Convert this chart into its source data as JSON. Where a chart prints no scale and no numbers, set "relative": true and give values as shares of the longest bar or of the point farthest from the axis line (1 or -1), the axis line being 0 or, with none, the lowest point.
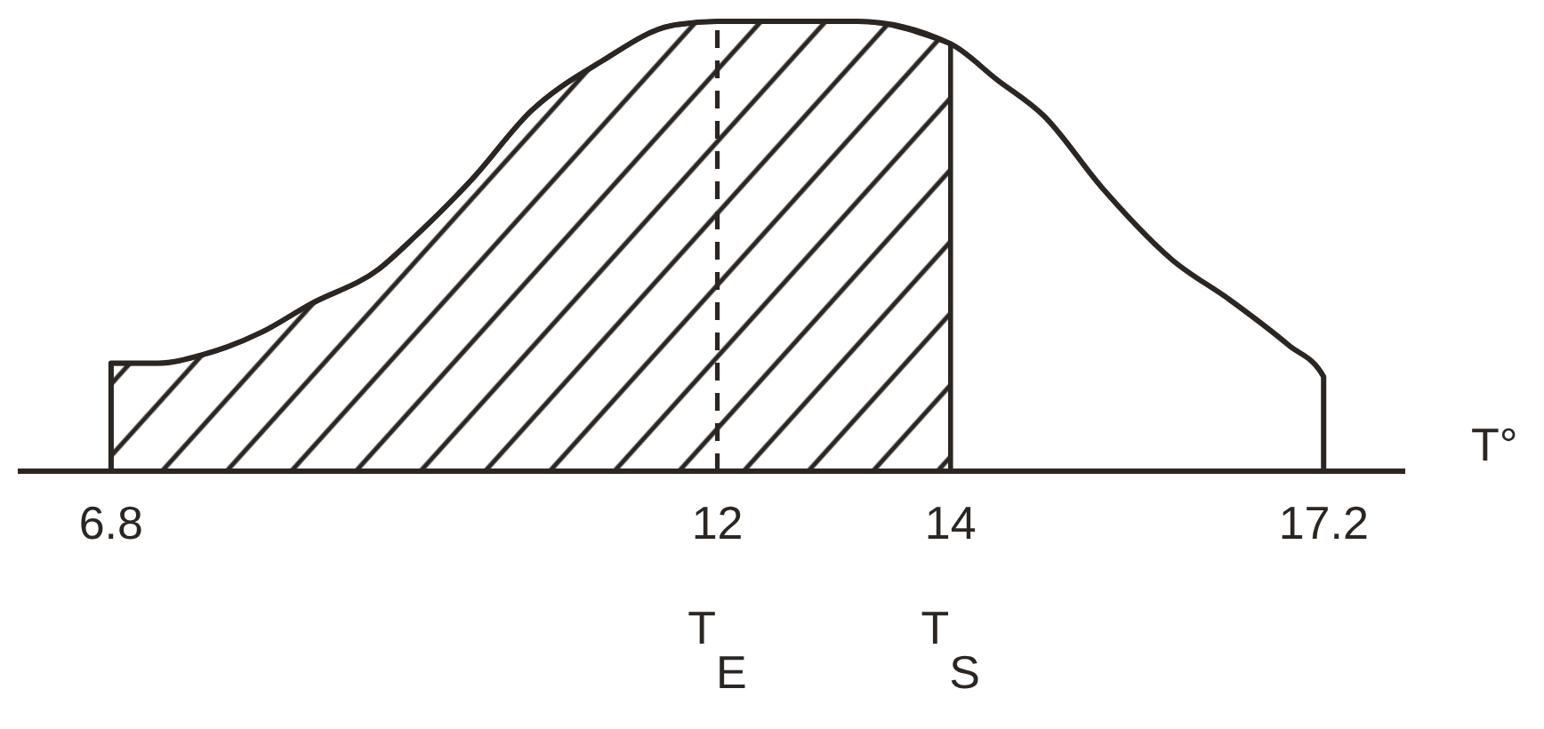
{
  "chart_data": {
    "type": "line",
    "relative": true,
    "xlabel": "T°",
    "xlim": [
      6,
      17.9
    ],
    "xticks": [
      6.8,
      12,
      14,
      17.2
    ],
    "series": [
      {
        "color": "#2b2622",
        "x": [
          6.8,
          6.8,
          7.2,
          7.6,
          8.1,
          8.5,
          9.1,
          9.4,
          9.9,
          10.4,
          11,
          11.6,
          12,
          13.2,
          14,
          14.4,
          14.8,
          15.3,
          15.9,
          16.4,
          16.9,
          17.2,
          17.2
        ],
        "values": [
          0,
          0.24,
          0.24,
          0.26,
          0.31,
          0.37,
          0.45,
          0.52,
          0.65,
          0.8,
          0.91,
          0.99,
          1,
          1,
          0.95,
          0.87,
          0.79,
          0.63,
          0.47,
          0.38,
          0.28,
          0.21,
          0
        ]
      },
      {
        "type": "area",
        "color": "#2b2622",
        "x": [
          6.8,
          7.2,
          7.6,
          8.1,
          8.5,
          9.1,
          9.4,
          9.9,
          10.4,
          11,
          11.6,
          12,
          13.2,
          14
        ],
        "values": [
          0.24,
          0.24,
          0.26,
          0.31,
          0.37,
          0.45,
          0.52,
          0.65,
          0.8,
          0.91,
          0.99,
          1,
          1,
          0.95
        ]
      }
    ],
    "ref_lines": [
      {
        "axis": "x",
        "value": 12,
        "label": "T$_{E}$",
        "line_style": "dashed"
      },
      {
        "axis": "x",
        "value": 14,
        "label": "T$_{S}$",
        "line_style": "solid"
      }
    ]
  }
}
